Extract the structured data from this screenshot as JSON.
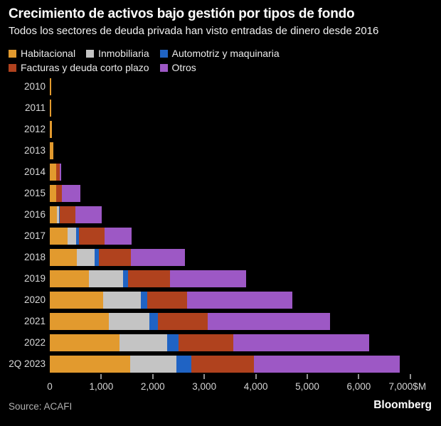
{
  "header": {
    "title": "Crecimiento de activos bajo gestión por tipos de fondo",
    "subtitle": "Todos los sectores de deuda privada han visto entradas de dinero desde 2016"
  },
  "legend": {
    "rows": [
      [
        0,
        1,
        2
      ],
      [
        3,
        4
      ]
    ]
  },
  "chart_data": {
    "type": "bar",
    "orientation": "horizontal-stacked",
    "title": "Crecimiento de activos bajo gestión por tipos de fondo",
    "subtitle": "Todos los sectores de deuda privada han visto entradas de dinero desde 2016",
    "unit": "$M",
    "categories": [
      "2010",
      "2011",
      "2012",
      "2013",
      "2014",
      "2015",
      "2016",
      "2017",
      "2018",
      "2019",
      "2020",
      "2021",
      "2022",
      "2Q 2023"
    ],
    "series": [
      {
        "name": "Habitacional",
        "color": "#E29A2E",
        "values": [
          25,
          25,
          45,
          75,
          125,
          120,
          140,
          345,
          530,
          765,
          1035,
          1150,
          1360,
          1555
        ]
      },
      {
        "name": "Inmobiliaria",
        "color": "#C4C4C4",
        "values": [
          0,
          0,
          0,
          0,
          0,
          0,
          35,
          160,
          340,
          655,
          730,
          785,
          920,
          905
        ]
      },
      {
        "name": "Automotriz y maquinaria",
        "color": "#1F63C4",
        "values": [
          0,
          0,
          0,
          0,
          0,
          0,
          15,
          55,
          80,
          100,
          125,
          170,
          215,
          290
        ]
      },
      {
        "name": "Facturas y deuda corto plazo",
        "color": "#B0421E",
        "values": [
          0,
          0,
          0,
          0,
          70,
          110,
          305,
          505,
          625,
          820,
          770,
          960,
          1075,
          1220
        ]
      },
      {
        "name": "Otros",
        "color": "#9D58C5",
        "values": [
          0,
          0,
          0,
          0,
          30,
          370,
          505,
          525,
          1050,
          1470,
          2050,
          2375,
          2630,
          2830
        ]
      }
    ],
    "totals": [
      25,
      25,
      45,
      75,
      225,
      600,
      1000,
      1590,
      2625,
      3810,
      4710,
      5440,
      6200,
      6800
    ],
    "xlim": [
      0,
      7000
    ],
    "x_ticks": [
      0,
      1000,
      2000,
      3000,
      4000,
      5000,
      6000,
      7000
    ],
    "x_tick_labels": [
      "0",
      "1,000",
      "2,000",
      "3,000",
      "4,000",
      "5,000",
      "6,000",
      "7,000$M"
    ],
    "grid": false,
    "legend_position": "top"
  },
  "footer": {
    "source": "Source: ACAFI",
    "brand": "Bloomberg"
  }
}
